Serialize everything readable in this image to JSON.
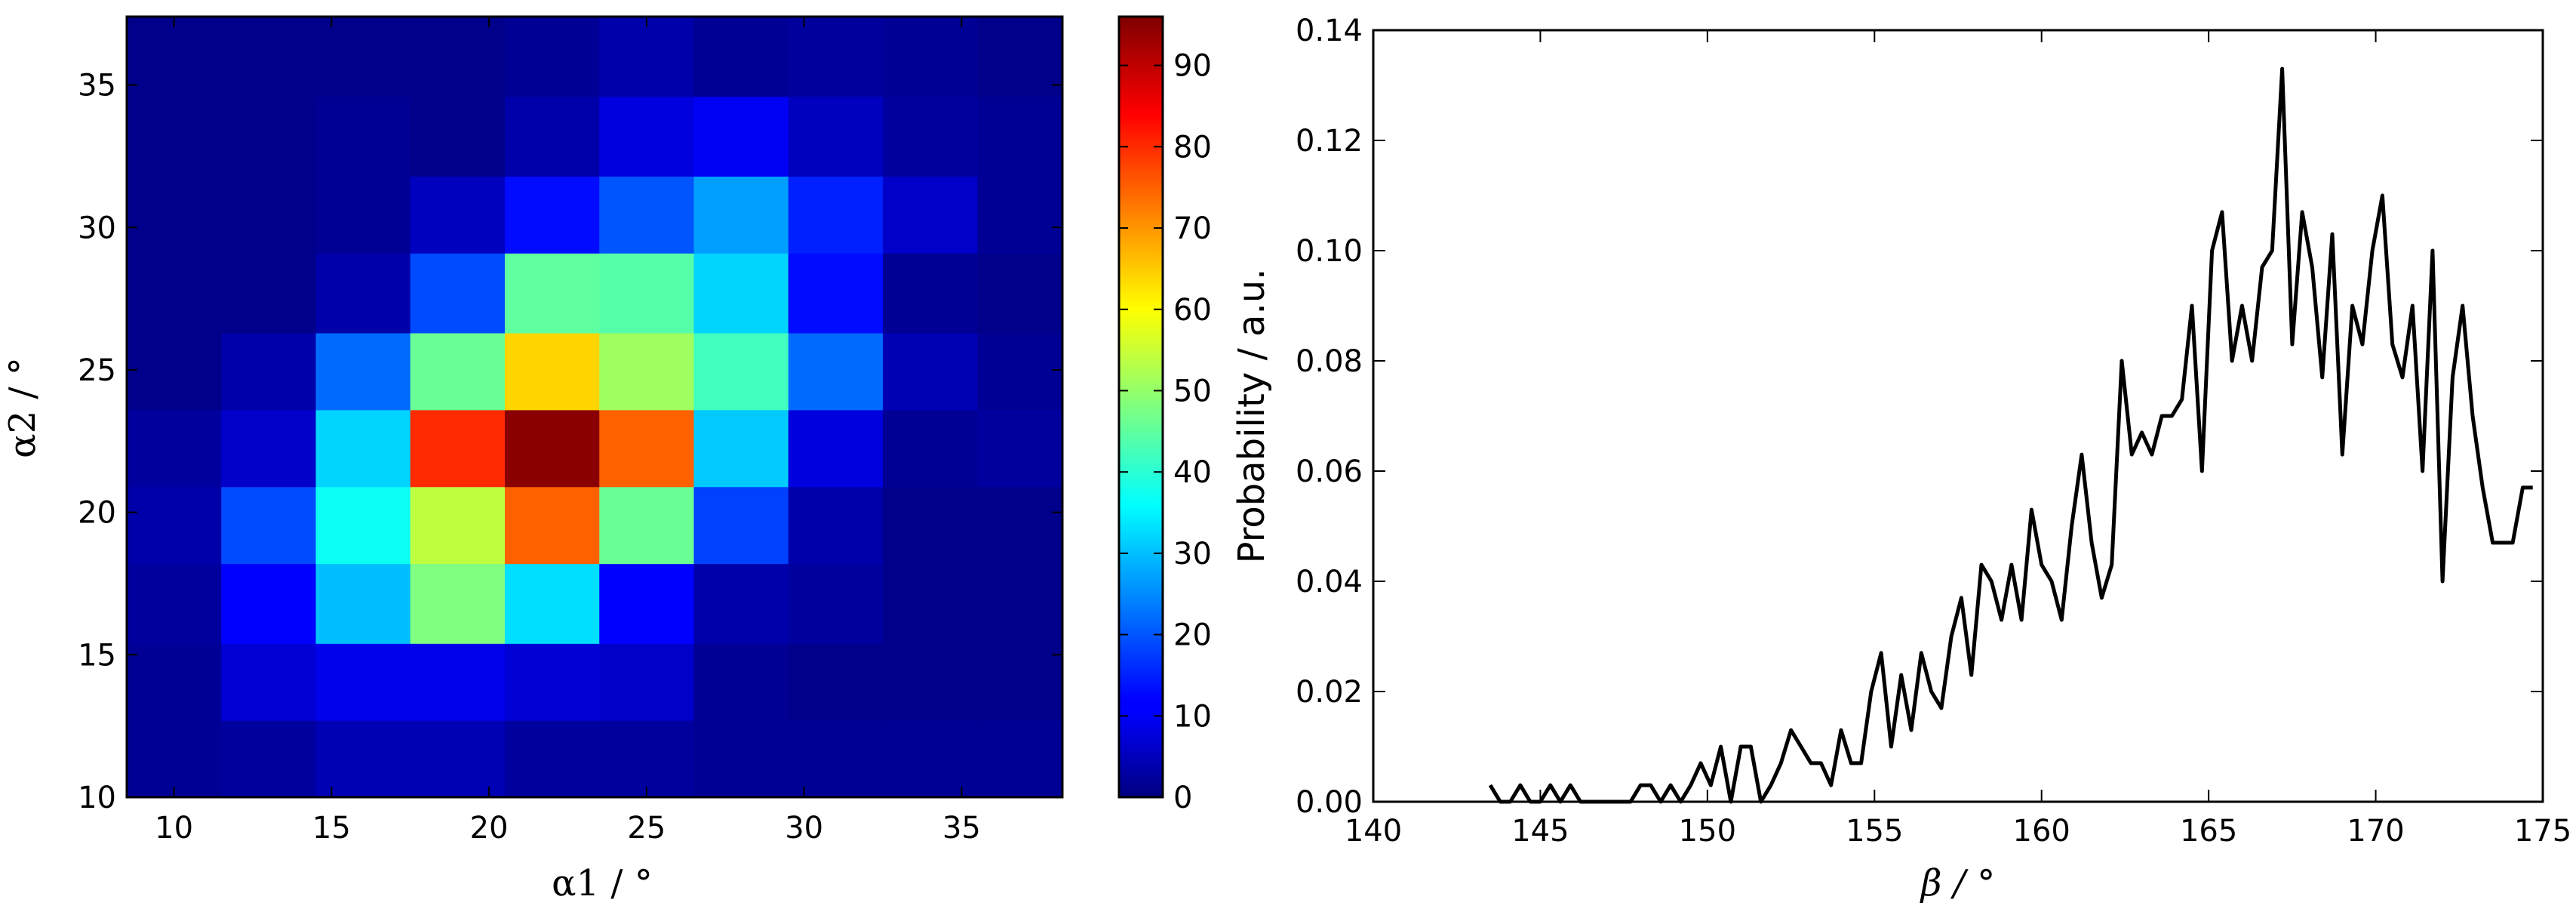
{
  "chart_data": [
    {
      "type": "heatmap",
      "xlabel": "α1 / °",
      "ylabel": "α2 / °",
      "x_tick_labels": [
        "10",
        "15",
        "20",
        "25",
        "30",
        "35"
      ],
      "x_ticks": [
        10,
        15,
        20,
        25,
        30,
        35
      ],
      "y_tick_labels": [
        "10",
        "15",
        "20",
        "25",
        "30",
        "35"
      ],
      "y_ticks": [
        10,
        15,
        20,
        25,
        30,
        35
      ],
      "xlim": [
        8.5,
        38.2
      ],
      "ylim": [
        10,
        37.4
      ],
      "x_edges": [
        8.5,
        11.5,
        14.5,
        17.5,
        20.5,
        23.5,
        26.5,
        29.5,
        32.5,
        35.5,
        38.2
      ],
      "y_edges": [
        10,
        12.7,
        15.4,
        18.2,
        20.9,
        23.6,
        26.3,
        29.1,
        31.8,
        34.6,
        37.4
      ],
      "z_rows_bottom_to_top": [
        [
          2,
          3,
          5,
          5,
          3,
          3,
          2,
          2,
          2,
          2
        ],
        [
          2,
          8,
          10,
          10,
          8,
          7,
          2,
          1,
          1,
          1
        ],
        [
          3,
          12,
          30,
          48,
          33,
          12,
          4,
          3,
          1,
          1
        ],
        [
          4,
          19,
          37,
          54,
          75,
          46,
          18,
          4,
          1,
          1
        ],
        [
          3,
          7,
          32,
          80,
          95,
          75,
          31,
          9,
          2,
          3
        ],
        [
          1,
          4,
          22,
          46,
          64,
          51,
          42,
          22,
          5,
          2
        ],
        [
          1,
          1,
          4,
          19,
          45,
          44,
          32,
          13,
          2,
          1
        ],
        [
          1,
          1,
          2,
          6,
          13,
          20,
          27,
          15,
          7,
          2
        ],
        [
          1,
          1,
          2,
          1,
          4,
          9,
          11,
          6,
          3,
          2
        ],
        [
          1,
          1,
          1,
          1,
          2,
          4,
          2,
          3,
          2,
          1
        ]
      ],
      "colorbar": {
        "colormap": "jet",
        "min": 0,
        "max": 96,
        "tick_labels": [
          "0",
          "10",
          "20",
          "30",
          "40",
          "50",
          "60",
          "70",
          "80",
          "90"
        ],
        "ticks": [
          0,
          10,
          20,
          30,
          40,
          50,
          60,
          70,
          80,
          90
        ]
      }
    },
    {
      "type": "line",
      "xlabel": "β / °",
      "ylabel": "Probability / a.u.",
      "xlim": [
        140,
        175
      ],
      "ylim": [
        0,
        0.14
      ],
      "x_tick_labels": [
        "140",
        "145",
        "150",
        "155",
        "160",
        "165",
        "170",
        "175"
      ],
      "x_ticks": [
        140,
        145,
        150,
        155,
        160,
        165,
        170,
        175
      ],
      "y_tick_labels": [
        "0.00",
        "0.02",
        "0.04",
        "0.06",
        "0.08",
        "0.10",
        "0.12",
        "0.14"
      ],
      "y_ticks": [
        0,
        0.02,
        0.04,
        0.06,
        0.08,
        0.1,
        0.12,
        0.14
      ],
      "grid": false,
      "series": [
        {
          "color": "#000000",
          "x": [
            143.5,
            143.8,
            144.1,
            144.4,
            144.7,
            145.0,
            145.3,
            145.6,
            145.9,
            146.2,
            146.5,
            146.8,
            147.1,
            147.4,
            147.7,
            148.0,
            148.3,
            148.6,
            148.9,
            149.2,
            149.5,
            149.8,
            150.1,
            150.4,
            150.7,
            151.0,
            151.3,
            151.6,
            151.9,
            152.2,
            152.5,
            152.8,
            153.1,
            153.4,
            153.7,
            154.0,
            154.3,
            154.6,
            154.9,
            155.2,
            155.5,
            155.8,
            156.1,
            156.4,
            156.7,
            157.0,
            157.3,
            157.6,
            157.9,
            158.2,
            158.5,
            158.8,
            159.1,
            159.4,
            159.7,
            160.0,
            160.3,
            160.6,
            160.9,
            161.2,
            161.5,
            161.8,
            162.1,
            162.4,
            162.7,
            163.0,
            163.3,
            163.6,
            163.9,
            164.2,
            164.5,
            164.8,
            165.1,
            165.4,
            165.7,
            166.0,
            166.3,
            166.6,
            166.9,
            167.2,
            167.5,
            167.8,
            168.1,
            168.4,
            168.7,
            169.0,
            169.3,
            169.6,
            169.9,
            170.2,
            170.5,
            170.8,
            171.1,
            171.4,
            171.7,
            172.0,
            172.3,
            172.6,
            172.9,
            173.2,
            173.5,
            173.8,
            174.1,
            174.4,
            174.7
          ],
          "y": [
            0.003,
            0.0,
            0.0,
            0.003,
            0.0,
            0.0,
            0.003,
            0.0,
            0.003,
            0.0,
            0.0,
            0.0,
            0.0,
            0.0,
            0.0,
            0.003,
            0.003,
            0.0,
            0.003,
            0.0,
            0.003,
            0.007,
            0.003,
            0.01,
            0.0,
            0.01,
            0.01,
            0.0,
            0.003,
            0.007,
            0.013,
            0.01,
            0.007,
            0.007,
            0.003,
            0.013,
            0.007,
            0.007,
            0.02,
            0.027,
            0.01,
            0.023,
            0.013,
            0.027,
            0.02,
            0.017,
            0.03,
            0.037,
            0.023,
            0.043,
            0.04,
            0.033,
            0.043,
            0.033,
            0.053,
            0.043,
            0.04,
            0.033,
            0.05,
            0.063,
            0.047,
            0.037,
            0.043,
            0.08,
            0.063,
            0.067,
            0.063,
            0.07,
            0.07,
            0.073,
            0.09,
            0.06,
            0.1,
            0.107,
            0.08,
            0.09,
            0.08,
            0.097,
            0.1,
            0.133,
            0.083,
            0.107,
            0.097,
            0.077,
            0.103,
            0.063,
            0.09,
            0.083,
            0.1,
            0.11,
            0.083,
            0.077,
            0.09,
            0.06,
            0.1,
            0.04,
            0.077,
            0.09,
            0.07,
            0.057,
            0.047,
            0.047,
            0.047,
            0.057,
            0.057
          ]
        }
      ]
    }
  ]
}
